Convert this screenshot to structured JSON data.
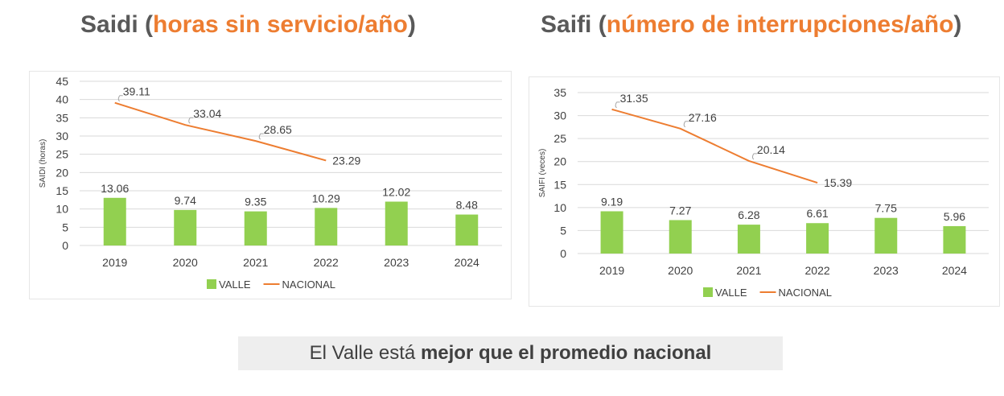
{
  "headings": [
    {
      "main": "Saidi",
      "open": " (",
      "highlight": "horas sin servicio/año",
      "close": ")"
    },
    {
      "main": "Saifi",
      "open": " (",
      "highlight": "número de interrupciones/año",
      "close": ")"
    }
  ],
  "colors": {
    "bar": "#92D050",
    "line": "#ED7D31",
    "highlight": "#ED7D31",
    "grid": "#d9d9d9",
    "text": "#404040"
  },
  "chart_data": [
    {
      "type": "bar",
      "ylabel": "SAIDI (horas)",
      "ylim": [
        0,
        45
      ],
      "yticks": [
        0,
        5,
        10,
        15,
        20,
        25,
        30,
        35,
        40,
        45
      ],
      "grid": true,
      "legend_position": "bottom",
      "categories": [
        "2019",
        "2020",
        "2021",
        "2022",
        "2023",
        "2024"
      ],
      "series": [
        {
          "name": "VALLE",
          "type": "bar",
          "values": [
            13.06,
            9.74,
            9.35,
            10.29,
            12.02,
            8.48
          ]
        },
        {
          "name": "NACIONAL",
          "type": "line",
          "values": [
            39.11,
            33.04,
            28.65,
            23.29,
            null,
            null
          ]
        }
      ]
    },
    {
      "type": "bar",
      "ylabel": "SAIFI (veces)",
      "ylim": [
        0,
        35
      ],
      "yticks": [
        0,
        5,
        10,
        15,
        20,
        25,
        30,
        35
      ],
      "grid": true,
      "legend_position": "bottom",
      "categories": [
        "2019",
        "2020",
        "2021",
        "2022",
        "2023",
        "2024"
      ],
      "series": [
        {
          "name": "VALLE",
          "type": "bar",
          "values": [
            9.19,
            7.27,
            6.28,
            6.61,
            7.75,
            5.96
          ]
        },
        {
          "name": "NACIONAL",
          "type": "line",
          "values": [
            31.35,
            27.16,
            20.14,
            15.39,
            null,
            null
          ]
        }
      ]
    }
  ],
  "footer": {
    "prefix": "El Valle está ",
    "bold": "mejor que el promedio nacional"
  }
}
